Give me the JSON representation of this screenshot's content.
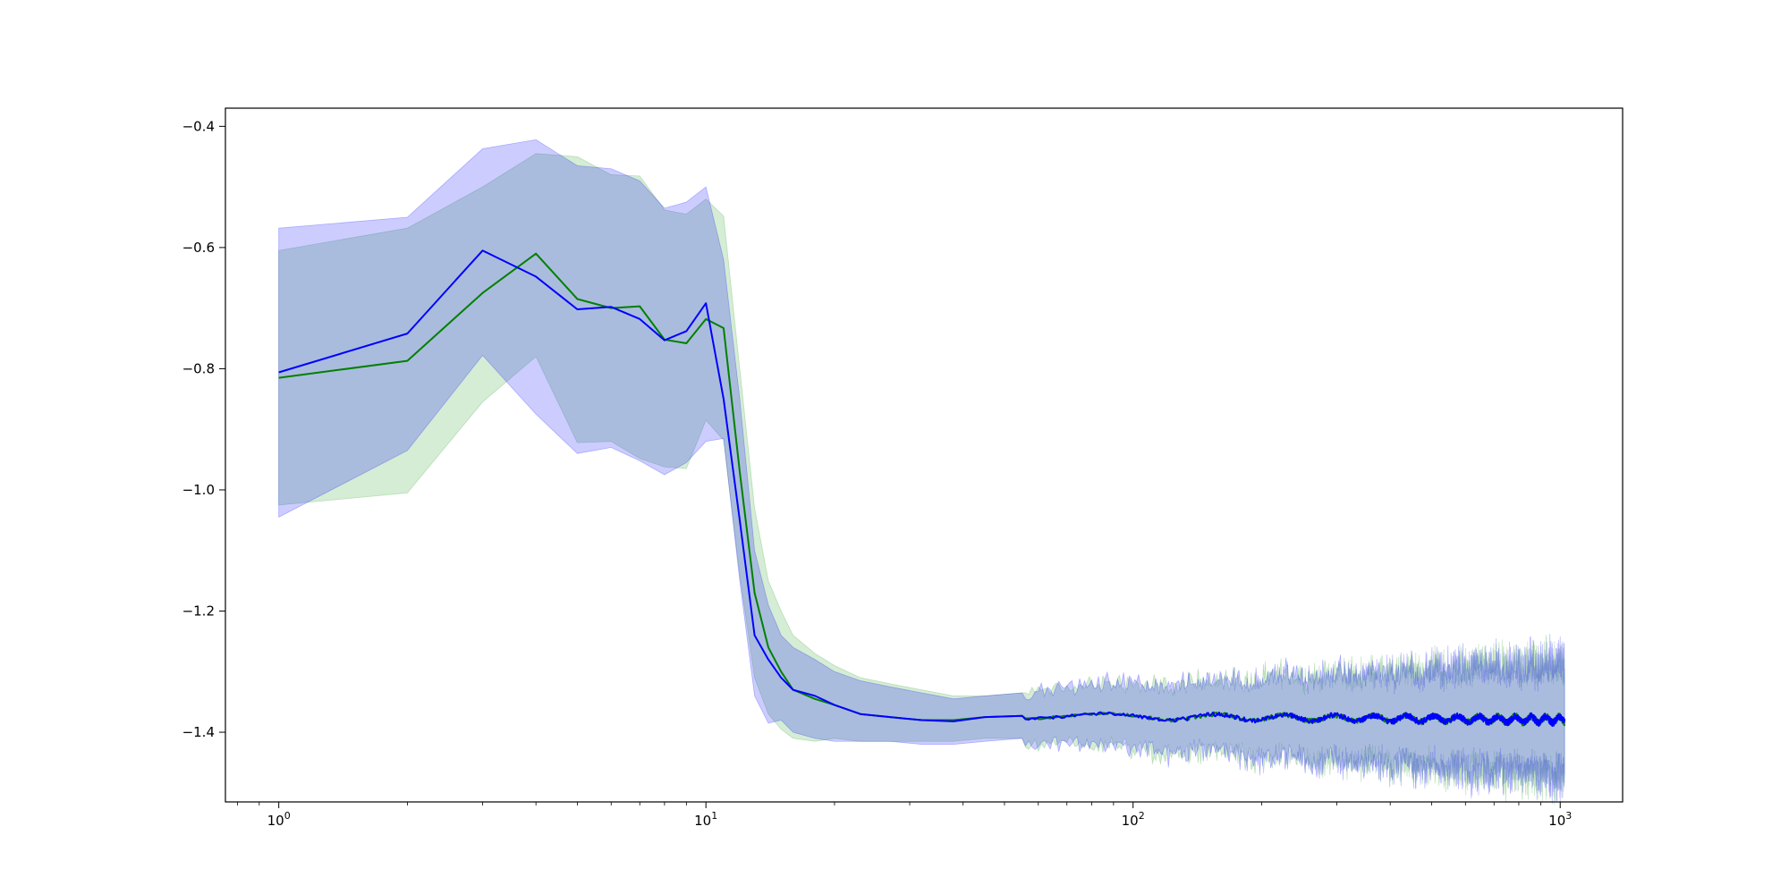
{
  "chart_data": {
    "type": "line",
    "title": "",
    "xlabel": "",
    "ylabel": "",
    "x_scale": "log",
    "xlim": [
      0.75,
      1400
    ],
    "ylim": [
      -1.515,
      -0.37
    ],
    "grid": false,
    "legend": "none",
    "x_ticks": [
      {
        "value": 1,
        "base": "10",
        "exp": "0"
      },
      {
        "value": 10,
        "base": "10",
        "exp": "1"
      },
      {
        "value": 100,
        "base": "10",
        "exp": "2"
      },
      {
        "value": 1000,
        "base": "10",
        "exp": "3"
      }
    ],
    "y_ticks": [
      {
        "value": -0.4,
        "label": "−0.4"
      },
      {
        "value": -0.6,
        "label": "−0.6"
      },
      {
        "value": -0.8,
        "label": "−0.8"
      },
      {
        "value": -1.0,
        "label": "−1.0"
      },
      {
        "value": -1.2,
        "label": "−1.2"
      },
      {
        "value": -1.4,
        "label": "−1.4"
      }
    ],
    "colors": {
      "green_line": "#008000",
      "green_band": "#2ca02c",
      "blue_line": "#0000ff",
      "blue_band": "#0000ff"
    },
    "noise_start_x": 55,
    "series": [
      {
        "key": "green",
        "color": "#008000",
        "band_color": "#2ca02c",
        "x": [
          1,
          2,
          3,
          4,
          5,
          6,
          7,
          8,
          9,
          10,
          11,
          12,
          13,
          14,
          15,
          16,
          18,
          20,
          23,
          27,
          32,
          38,
          45,
          55
        ],
        "mean": [
          -0.815,
          -0.787,
          -0.675,
          -0.61,
          -0.685,
          -0.7,
          -0.697,
          -0.752,
          -0.758,
          -0.718,
          -0.733,
          -0.97,
          -1.17,
          -1.26,
          -1.3,
          -1.33,
          -1.345,
          -1.355,
          -1.37,
          -1.375,
          -1.38,
          -1.38,
          -1.375,
          -1.373
        ],
        "upper": [
          -0.605,
          -0.568,
          -0.5,
          -0.445,
          -0.45,
          -0.48,
          -0.482,
          -0.538,
          -0.545,
          -0.52,
          -0.548,
          -0.8,
          -1.03,
          -1.15,
          -1.2,
          -1.24,
          -1.27,
          -1.29,
          -1.31,
          -1.32,
          -1.33,
          -1.34,
          -1.34,
          -1.335
        ],
        "lower": [
          -1.025,
          -1.005,
          -0.855,
          -0.78,
          -0.922,
          -0.92,
          -0.948,
          -0.962,
          -0.965,
          -0.885,
          -0.918,
          -1.14,
          -1.31,
          -1.37,
          -1.395,
          -1.41,
          -1.415,
          -1.41,
          -1.415,
          -1.415,
          -1.415,
          -1.415,
          -1.41,
          -1.41
        ]
      },
      {
        "key": "blue",
        "color": "#0000ff",
        "band_color": "#0000ff",
        "x": [
          1,
          2,
          3,
          4,
          5,
          6,
          7,
          8,
          9,
          10,
          11,
          12,
          13,
          14,
          15,
          16,
          18,
          20,
          23,
          27,
          32,
          38,
          45,
          55
        ],
        "mean": [
          -0.806,
          -0.742,
          -0.605,
          -0.648,
          -0.702,
          -0.698,
          -0.718,
          -0.753,
          -0.738,
          -0.692,
          -0.85,
          -1.05,
          -1.24,
          -1.28,
          -1.31,
          -1.33,
          -1.34,
          -1.355,
          -1.37,
          -1.375,
          -1.38,
          -1.382,
          -1.375,
          -1.373
        ],
        "upper": [
          -0.568,
          -0.55,
          -0.437,
          -0.422,
          -0.465,
          -0.47,
          -0.49,
          -0.535,
          -0.525,
          -0.5,
          -0.62,
          -0.85,
          -1.1,
          -1.19,
          -1.24,
          -1.26,
          -1.28,
          -1.3,
          -1.315,
          -1.325,
          -1.335,
          -1.345,
          -1.34,
          -1.335
        ],
        "lower": [
          -1.045,
          -0.935,
          -0.778,
          -0.875,
          -0.94,
          -0.93,
          -0.952,
          -0.975,
          -0.955,
          -0.92,
          -0.915,
          -1.15,
          -1.34,
          -1.385,
          -1.38,
          -1.4,
          -1.41,
          -1.415,
          -1.415,
          -1.415,
          -1.42,
          -1.42,
          -1.415,
          -1.41
        ]
      }
    ]
  }
}
